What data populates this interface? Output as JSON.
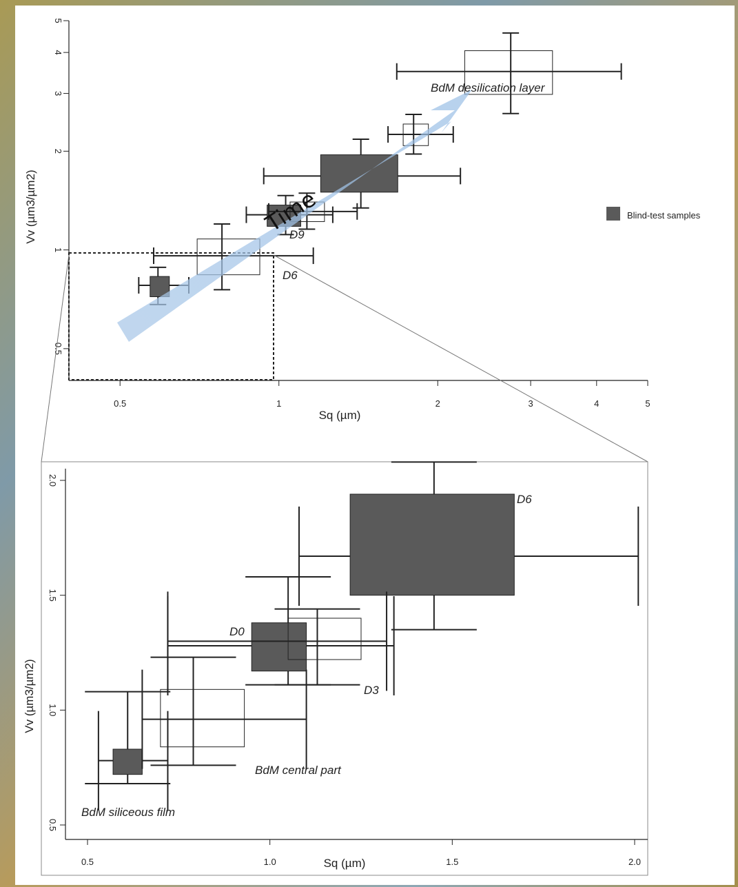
{
  "chart_data": [
    {
      "type": "scatter",
      "subtype": "box-errorbar",
      "xlabel": "Sq (µm)",
      "ylabel": "Vv (µm3/µm2)",
      "x_ticks": [
        "0.5",
        "1",
        "2",
        "3",
        "4",
        "5"
      ],
      "y_ticks": [
        "0.5",
        "1",
        "2",
        "3",
        "4",
        "5"
      ],
      "xlim": [
        0.4,
        5
      ],
      "ylim": [
        0.4,
        5
      ],
      "scale": "log",
      "legend": {
        "label": "Blind-test samples",
        "color": "#5a5a5a",
        "placement": "right"
      },
      "annotations": [
        {
          "text": "BdM desilication layer",
          "x": 3.7,
          "y": 4.2
        },
        {
          "text": "Time",
          "x": 1.55,
          "y": 2.2
        },
        {
          "text": "D9",
          "x": 2.05,
          "y": 2.12
        },
        {
          "text": "D6",
          "x": 2.05,
          "y": 1.58
        }
      ],
      "series": [
        {
          "name": "Blind-test samples",
          "filled": true,
          "points": [
            {
              "x": 0.59,
              "y": 0.78,
              "x_box": [
                0.57,
                0.62
              ],
              "y_box": [
                0.72,
                0.83
              ]
            },
            {
              "x": 1.03,
              "y": 1.28,
              "x_box": [
                0.95,
                1.1
              ],
              "y_box": [
                1.18,
                1.37
              ]
            },
            {
              "x": 1.43,
              "y": 1.68,
              "x_box": [
                1.2,
                1.68
              ],
              "y_box": [
                1.5,
                1.95
              ]
            }
          ]
        },
        {
          "name": "",
          "filled": false,
          "points": [
            {
              "x": 0.78,
              "y": 0.96,
              "x_box": [
                0.7,
                0.92
              ],
              "y_box": [
                0.84,
                1.08
              ]
            },
            {
              "x": 1.13,
              "y": 1.31,
              "x_box": [
                1.05,
                1.22
              ],
              "y_box": [
                1.22,
                1.4
              ]
            },
            {
              "x": 1.8,
              "y": 2.25,
              "x_box": [
                1.72,
                1.92
              ],
              "y_box": [
                2.08,
                2.42
              ]
            },
            {
              "x": 2.75,
              "y": 3.5,
              "x_box": [
                2.25,
                3.3
              ],
              "y_box": [
                2.98,
                4.05
              ]
            }
          ]
        }
      ]
    },
    {
      "type": "scatter",
      "subtype": "box-errorbar",
      "xlabel": "Sq (µm)",
      "ylabel": "Vv (µm3/µm2)",
      "x_ticks": [
        "0.5",
        "1.0",
        "1.5",
        "2.0"
      ],
      "y_ticks": [
        "0.5",
        "1.0",
        "1.5",
        "2.0"
      ],
      "xlim": [
        0.45,
        2.02
      ],
      "ylim": [
        0.45,
        2.05
      ],
      "annotations": [
        {
          "text": "D6",
          "x": 1.68,
          "y": 1.93
        },
        {
          "text": "D0",
          "x": 0.9,
          "y": 1.38
        },
        {
          "text": "D3",
          "x": 1.26,
          "y": 1.09
        },
        {
          "text": "BdM central part",
          "x": 0.93,
          "y": 0.75
        },
        {
          "text": "BdM siliceous film",
          "x": 0.5,
          "y": 0.56
        }
      ],
      "series": [
        {
          "name": "Blind-test samples",
          "filled": true,
          "points": [
            {
              "x": 0.61,
              "y": 0.78,
              "x_box": [
                0.57,
                0.65
              ],
              "y_box": [
                0.72,
                0.83
              ],
              "x_err": [
                0.53,
                0.72
              ],
              "y_err": [
                0.68,
                1.08
              ]
            },
            {
              "x": 1.05,
              "y": 1.28,
              "x_box": [
                0.95,
                1.1
              ],
              "y_box": [
                1.17,
                1.38
              ],
              "x_err": [
                0.72,
                1.34
              ],
              "y_err": [
                1.11,
                1.58
              ]
            },
            {
              "x": 1.45,
              "y": 1.67,
              "x_box": [
                1.22,
                1.67
              ],
              "y_box": [
                1.5,
                1.94
              ],
              "x_err": [
                1.08,
                2.01
              ],
              "y_err": [
                1.35,
                2.08
              ]
            }
          ]
        },
        {
          "name": "",
          "filled": false,
          "points": [
            {
              "x": 0.79,
              "y": 0.96,
              "x_box": [
                0.7,
                0.93
              ],
              "y_box": [
                0.84,
                1.09
              ],
              "x_err": [
                0.65,
                1.1
              ],
              "y_err": [
                0.76,
                1.23
              ]
            },
            {
              "x": 1.13,
              "y": 1.3,
              "x_box": [
                1.05,
                1.25
              ],
              "y_box": [
                1.22,
                1.4
              ],
              "x_err": [
                0.72,
                1.32
              ],
              "y_err": [
                1.11,
                1.44
              ]
            }
          ]
        }
      ]
    }
  ]
}
